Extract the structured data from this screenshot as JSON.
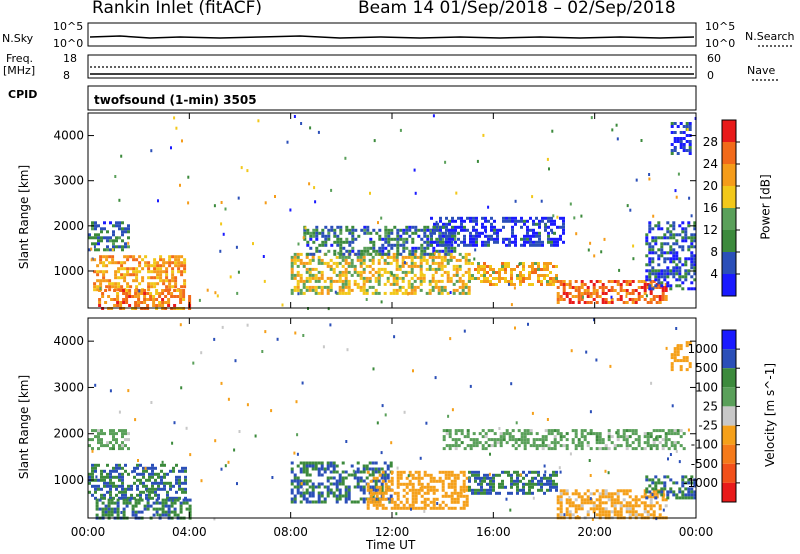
{
  "header": {
    "station": "Rankin Inlet (fitACF)",
    "beam_period": "Beam 14  01/Sep/2018 – 02/Sep/2018"
  },
  "strips": {
    "nsky_label": "N.Sky",
    "nsky_ticks": [
      "10^5",
      "10^0"
    ],
    "nsearch_label": "N.Search",
    "freq_label": "Freq.",
    "freq_unit": "[MHz]",
    "freq_ticks": [
      "18",
      "8"
    ],
    "nave_label": "Nave",
    "nave_ticks": [
      "60",
      "0"
    ],
    "cpid_label": "CPID",
    "cpid_value": "twofsound (1-min) 3505"
  },
  "colors": {
    "power": [
      "#1a1aff",
      "#2b4fb8",
      "#3c8a3c",
      "#5aa05a",
      "#f2c81a",
      "#f59c1a",
      "#f26a1a",
      "#e81a1a"
    ],
    "velocity": [
      "#1a1aff",
      "#2b4fb8",
      "#3c8a3c",
      "#5aa05a",
      "#c8c8c8",
      "#f5a01a",
      "#f57a1a",
      "#f2501a",
      "#e81a1a"
    ]
  },
  "chart_data": [
    {
      "type": "heatmap",
      "panel": "power",
      "ylabel": "Slant Range [km]",
      "ylim": [
        180,
        4500
      ],
      "yticks": [
        1000,
        2000,
        3000,
        4000
      ],
      "colorbar_label": "Power [dB]",
      "colorbar_ticks": [
        "4",
        "8",
        "12",
        "16",
        "20",
        "24",
        "28"
      ],
      "echo_regions": [
        {
          "t": [
            0.2,
            3.8
          ],
          "r": [
            600,
            1350
          ],
          "level": 24
        },
        {
          "t": [
            0.4,
            4.0
          ],
          "r": [
            180,
            600
          ],
          "level": 26
        },
        {
          "t": [
            0.0,
            1.6
          ],
          "r": [
            1500,
            2100
          ],
          "level": 10
        },
        {
          "t": [
            8.0,
            15.0
          ],
          "r": [
            500,
            1400
          ],
          "level": 20
        },
        {
          "t": [
            8.5,
            14.5
          ],
          "r": [
            1400,
            2000
          ],
          "level": 10
        },
        {
          "t": [
            15.0,
            18.5
          ],
          "r": [
            700,
            1200
          ],
          "level": 22
        },
        {
          "t": [
            13.5,
            18.8
          ],
          "r": [
            1600,
            2200
          ],
          "level": 6
        },
        {
          "t": [
            18.5,
            22.8
          ],
          "r": [
            300,
            800
          ],
          "level": 28
        },
        {
          "t": [
            22.0,
            23.9
          ],
          "r": [
            600,
            2100
          ],
          "level": 8
        },
        {
          "t": [
            23.0,
            23.8
          ],
          "r": [
            3600,
            4300
          ],
          "level": 6
        }
      ]
    },
    {
      "type": "heatmap",
      "panel": "velocity",
      "ylabel": "Slant Range [km]",
      "ylim": [
        180,
        4500
      ],
      "yticks": [
        1000,
        2000,
        3000,
        4000
      ],
      "colorbar_label": "Velocity [m s^-1]",
      "colorbar_ticks": [
        "1000",
        "500",
        "100",
        "25",
        "-25",
        "-100",
        "-500",
        "-1000"
      ],
      "echo_regions": [
        {
          "t": [
            0.0,
            3.8
          ],
          "r": [
            600,
            1350
          ],
          "level": 100
        },
        {
          "t": [
            0.3,
            4.0
          ],
          "r": [
            180,
            600
          ],
          "level": 100
        },
        {
          "t": [
            0.0,
            1.6
          ],
          "r": [
            1700,
            2100
          ],
          "level": 0
        },
        {
          "t": [
            8.0,
            12.0
          ],
          "r": [
            500,
            1400
          ],
          "level": 100
        },
        {
          "t": [
            11.0,
            15.0
          ],
          "r": [
            400,
            1200
          ],
          "level": -300
        },
        {
          "t": [
            15.0,
            18.5
          ],
          "r": [
            700,
            1200
          ],
          "level": 100
        },
        {
          "t": [
            14.0,
            23.5
          ],
          "r": [
            1700,
            2100
          ],
          "level": 0
        },
        {
          "t": [
            18.5,
            22.8
          ],
          "r": [
            180,
            800
          ],
          "level": -150
        },
        {
          "t": [
            22.0,
            23.9
          ],
          "r": [
            600,
            1100
          ],
          "level": 100
        },
        {
          "t": [
            23.0,
            23.8
          ],
          "r": [
            3400,
            4000
          ],
          "level": -300
        }
      ]
    }
  ],
  "xaxis": {
    "label": "Time UT",
    "ticks": [
      "00:00",
      "04:00",
      "08:00",
      "12:00",
      "16:00",
      "20:00",
      "00:00"
    ],
    "range_hours": [
      0,
      24
    ]
  }
}
